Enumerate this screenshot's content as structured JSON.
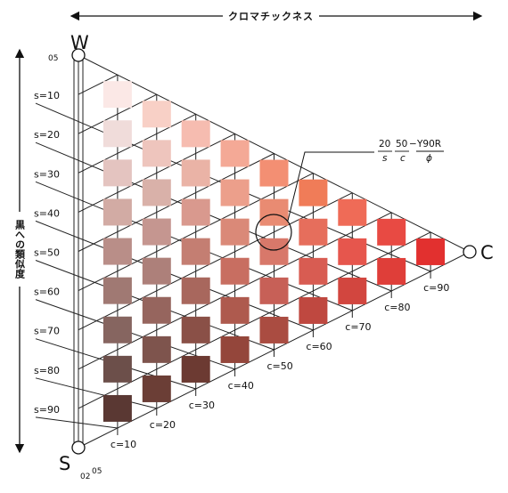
{
  "header": {
    "chroma_axis_label": "クロマチックネス",
    "blackness_axis_label": "黒への類似度"
  },
  "poles": {
    "white": "W",
    "black": "S",
    "full_color": "C"
  },
  "edge_ticks": {
    "top": "05",
    "bottom_a": "02",
    "bottom_b": "05"
  },
  "s_labels": [
    "s=10",
    "s=20",
    "s=30",
    "s=40",
    "s=50",
    "s=60",
    "s=70",
    "s=80",
    "s=90"
  ],
  "c_labels": [
    "c=10",
    "c=20",
    "c=30",
    "c=40",
    "c=50",
    "c=60",
    "c=70",
    "c=80",
    "c=90"
  ],
  "notation": {
    "num_s": "20",
    "den_s": "s",
    "num_c": "50",
    "den_c": "c",
    "num_hue": "Y90R",
    "den_hue": "ϕ",
    "dash": "−"
  },
  "colors": {
    "grid_line": "#222222",
    "patches": [
      [
        "#fbe8e6",
        "#f0dcda",
        "#e4c4c0",
        "#d2aba4",
        "#b98e88",
        "#a07973",
        "#866560",
        "#6c4f4a",
        "#5a3833"
      ],
      [
        "#f8d0c6",
        "#eec5bd",
        "#d9b1a9",
        "#c59690",
        "#ad807a",
        "#96655e",
        "#7e544d",
        "#6b3e36"
      ],
      [
        "#f6bcb0",
        "#eab3a6",
        "#d9998e",
        "#c47e72",
        "#a8675d",
        "#8a5047",
        "#6c3a32"
      ],
      [
        "#f4a996",
        "#ec9f8b",
        "#da8978",
        "#c86e61",
        "#ae5a4e",
        "#94463b"
      ],
      [
        "#f38f73",
        "#e98b72",
        "#d8786a",
        "#c76057",
        "#aa4c41"
      ],
      [
        "#f07c58",
        "#e66e5c",
        "#d85c52",
        "#bf4840"
      ],
      [
        "#ef6b57",
        "#e6564d",
        "#d2463f"
      ],
      [
        "#e84a43",
        "#df3e39"
      ],
      [
        "#e2302f"
      ]
    ]
  }
}
